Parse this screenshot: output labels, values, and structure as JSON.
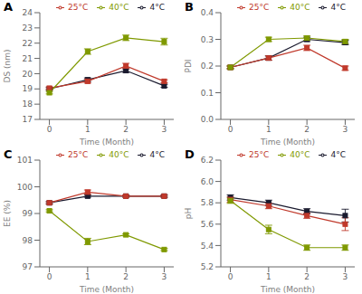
{
  "chart_data": [
    {
      "type": "line",
      "title": "A",
      "xlabel": "Time (Month)",
      "ylabel": "DS (nm)",
      "x": [
        0,
        1,
        2,
        3
      ],
      "xlim": [
        -0.25,
        3.25
      ],
      "xticks": [
        0,
        1,
        2,
        3
      ],
      "ylim": [
        17,
        24
      ],
      "yticks": [
        17,
        18,
        19,
        20,
        21,
        22,
        23,
        24
      ],
      "legend": "top",
      "series": [
        {
          "name": "4°C",
          "color": "#1a1a2e",
          "marker": "square",
          "values": [
            19.0,
            19.6,
            20.2,
            19.2
          ],
          "errors": [
            0.08,
            0.12,
            0.12,
            0.1
          ]
        },
        {
          "name": "25°C",
          "color": "#c0392b",
          "marker": "square",
          "values": [
            19.05,
            19.5,
            20.5,
            19.5
          ],
          "errors": [
            0.08,
            0.12,
            0.18,
            0.1
          ]
        },
        {
          "name": "40°C",
          "color": "#7f9900",
          "marker": "square",
          "values": [
            18.75,
            21.45,
            22.35,
            22.1
          ],
          "errors": [
            0.08,
            0.18,
            0.18,
            0.22
          ]
        }
      ]
    },
    {
      "type": "line",
      "title": "B",
      "xlabel": "Time (Month)",
      "ylabel": "PDI",
      "x": [
        0,
        1,
        2,
        3
      ],
      "xlim": [
        -0.25,
        3.25
      ],
      "xticks": [
        0,
        1,
        2,
        3
      ],
      "ylim": [
        0.0,
        0.4
      ],
      "yticks": [
        {
          "value": 0,
          "label": "0.0"
        },
        0.1,
        0.2,
        0.3,
        0.4
      ],
      "legend": "top",
      "series": [
        {
          "name": "4°C",
          "color": "#1a1a2e",
          "marker": "square",
          "values": [
            0.195,
            0.23,
            0.3,
            0.288
          ],
          "errors": [
            0.005,
            0.008,
            0.008,
            0.008
          ]
        },
        {
          "name": "25°C",
          "color": "#c0392b",
          "marker": "square",
          "values": [
            0.195,
            0.23,
            0.268,
            0.192
          ],
          "errors": [
            0.005,
            0.008,
            0.01,
            0.008
          ]
        },
        {
          "name": "40°C",
          "color": "#7f9900",
          "marker": "square",
          "values": [
            0.195,
            0.3,
            0.305,
            0.292
          ],
          "errors": [
            0.005,
            0.008,
            0.008,
            0.008
          ]
        }
      ]
    },
    {
      "type": "line",
      "title": "C",
      "xlabel": "Time (Month)",
      "ylabel": "EE (%)",
      "x": [
        0,
        1,
        2,
        3
      ],
      "xlim": [
        -0.25,
        3.25
      ],
      "xticks": [
        0,
        1,
        2,
        3
      ],
      "ylim": [
        97,
        101
      ],
      "yticks": [
        97,
        98,
        99,
        100,
        101
      ],
      "legend": "top",
      "series": [
        {
          "name": "4°C",
          "color": "#1a1a2e",
          "marker": "square",
          "values": [
            99.4,
            99.65,
            99.65,
            99.65
          ],
          "errors": [
            0.04,
            0.04,
            0.04,
            0.04
          ]
        },
        {
          "name": "25°C",
          "color": "#c0392b",
          "marker": "square",
          "values": [
            99.4,
            99.8,
            99.65,
            99.65
          ],
          "errors": [
            0.04,
            0.08,
            0.04,
            0.04
          ]
        },
        {
          "name": "40°C",
          "color": "#7f9900",
          "marker": "square",
          "values": [
            99.1,
            97.95,
            98.2,
            97.65
          ],
          "errors": [
            0.04,
            0.12,
            0.04,
            0.04
          ]
        }
      ]
    },
    {
      "type": "line",
      "title": "D",
      "xlabel": "Time (Month)",
      "ylabel": "pH",
      "x": [
        0,
        1,
        2,
        3
      ],
      "xlim": [
        -0.25,
        3.25
      ],
      "xticks": [
        0,
        1,
        2,
        3
      ],
      "ylim": [
        5.2,
        6.2
      ],
      "yticks": [
        5.2,
        5.4,
        5.6,
        5.8,
        {
          "value": 6,
          "label": "6.0"
        },
        6.2
      ],
      "legend": "top",
      "series": [
        {
          "name": "4°C",
          "color": "#1a1a2e",
          "marker": "square",
          "values": [
            5.85,
            5.8,
            5.72,
            5.68
          ],
          "errors": [
            0.025,
            0.025,
            0.025,
            0.06
          ]
        },
        {
          "name": "25°C",
          "color": "#c0392b",
          "marker": "square",
          "values": [
            5.83,
            5.77,
            5.68,
            5.6
          ],
          "errors": [
            0.025,
            0.025,
            0.025,
            0.06
          ]
        },
        {
          "name": "40°C",
          "color": "#7f9900",
          "marker": "square",
          "values": [
            5.82,
            5.55,
            5.38,
            5.38
          ],
          "errors": [
            0.025,
            0.04,
            0.025,
            0.025
          ]
        }
      ]
    }
  ]
}
